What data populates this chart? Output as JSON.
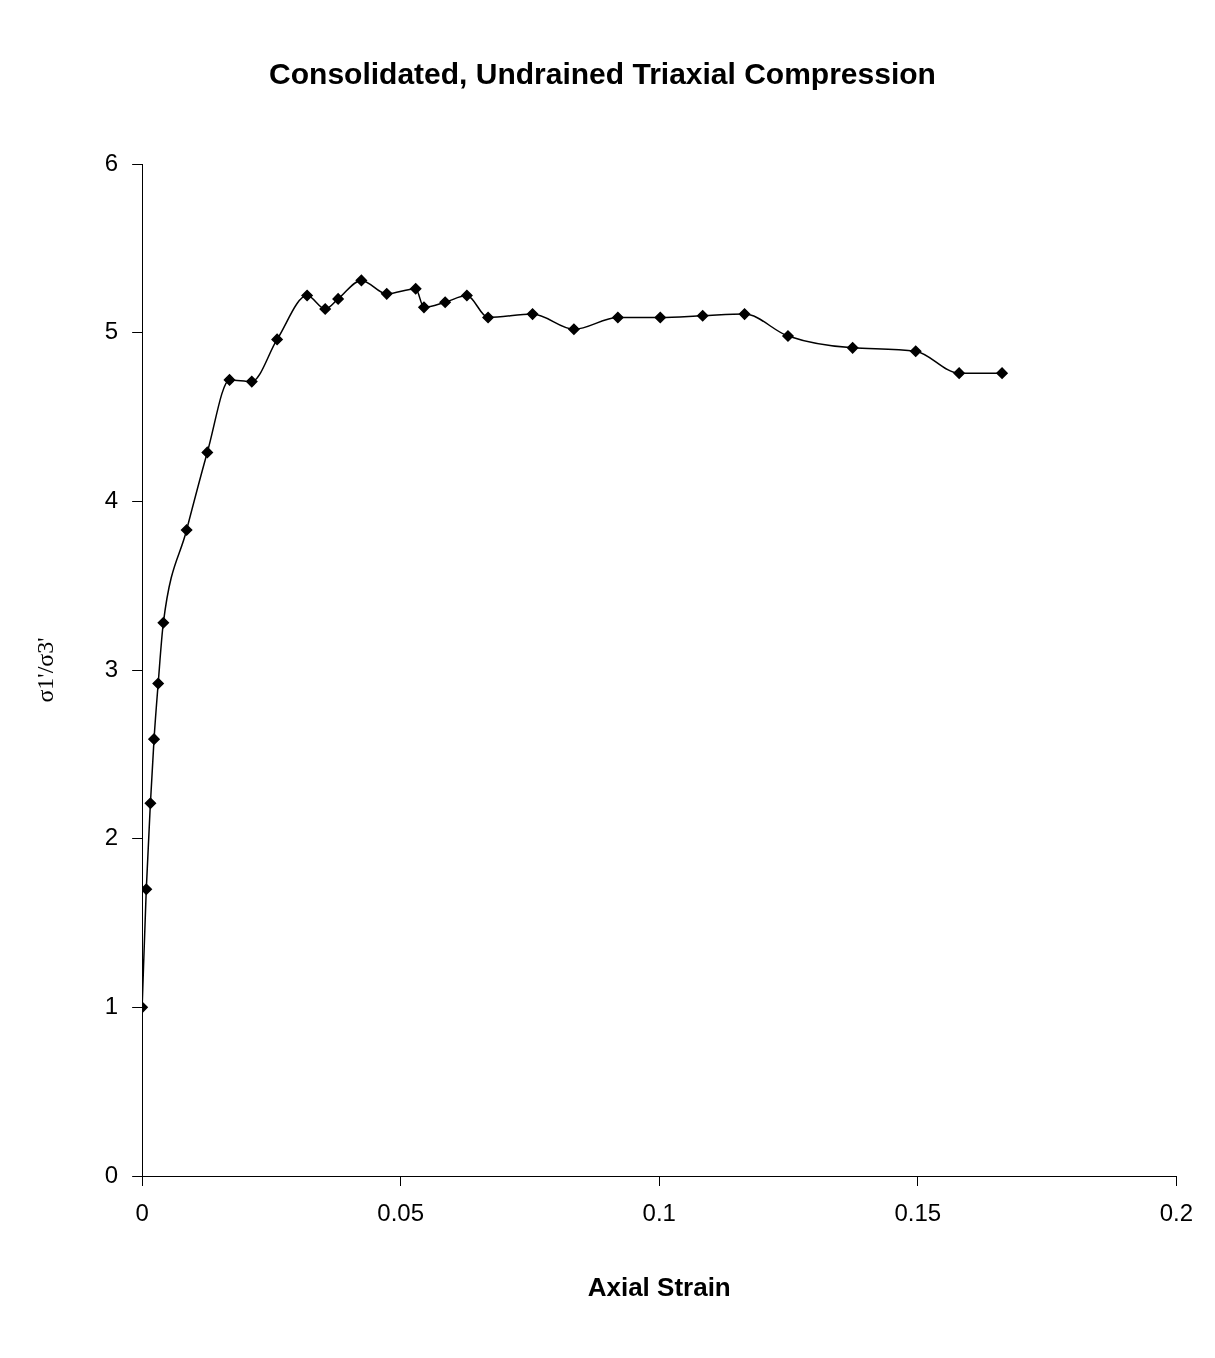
{
  "chart_data": {
    "type": "line",
    "title": "Consolidated, Undrained Triaxial Compression",
    "xlabel": "Axial Strain",
    "ylabel": "σ1'/σ3'",
    "x": [
      0,
      0.0008,
      0.0016,
      0.0023,
      0.0031,
      0.0041,
      0.0086,
      0.0126,
      0.0169,
      0.0212,
      0.0261,
      0.0319,
      0.0354,
      0.0379,
      0.0424,
      0.0473,
      0.0529,
      0.0545,
      0.0586,
      0.0628,
      0.0669,
      0.0755,
      0.0835,
      0.092,
      0.1002,
      0.1084,
      0.1165,
      0.1249,
      0.1374,
      0.1496,
      0.158,
      0.1663
    ],
    "series": [
      {
        "color": "#000000",
        "values": [
          1.0,
          1.7,
          2.21,
          2.59,
          2.92,
          3.28,
          3.83,
          4.29,
          4.72,
          4.71,
          4.96,
          5.22,
          5.14,
          5.2,
          5.31,
          5.23,
          5.26,
          5.15,
          5.18,
          5.22,
          5.09,
          5.11,
          5.02,
          5.09,
          5.09,
          5.1,
          5.11,
          4.98,
          4.91,
          4.89,
          4.76,
          4.76
        ]
      }
    ],
    "xlim": [
      0,
      0.2
    ],
    "ylim": [
      0,
      6
    ],
    "xticks": [
      0,
      0.05,
      0.1,
      0.15,
      0.2
    ],
    "yticks": [
      0,
      1,
      2,
      3,
      4,
      5,
      6
    ],
    "marker": "diamond",
    "line_style": "solid"
  }
}
